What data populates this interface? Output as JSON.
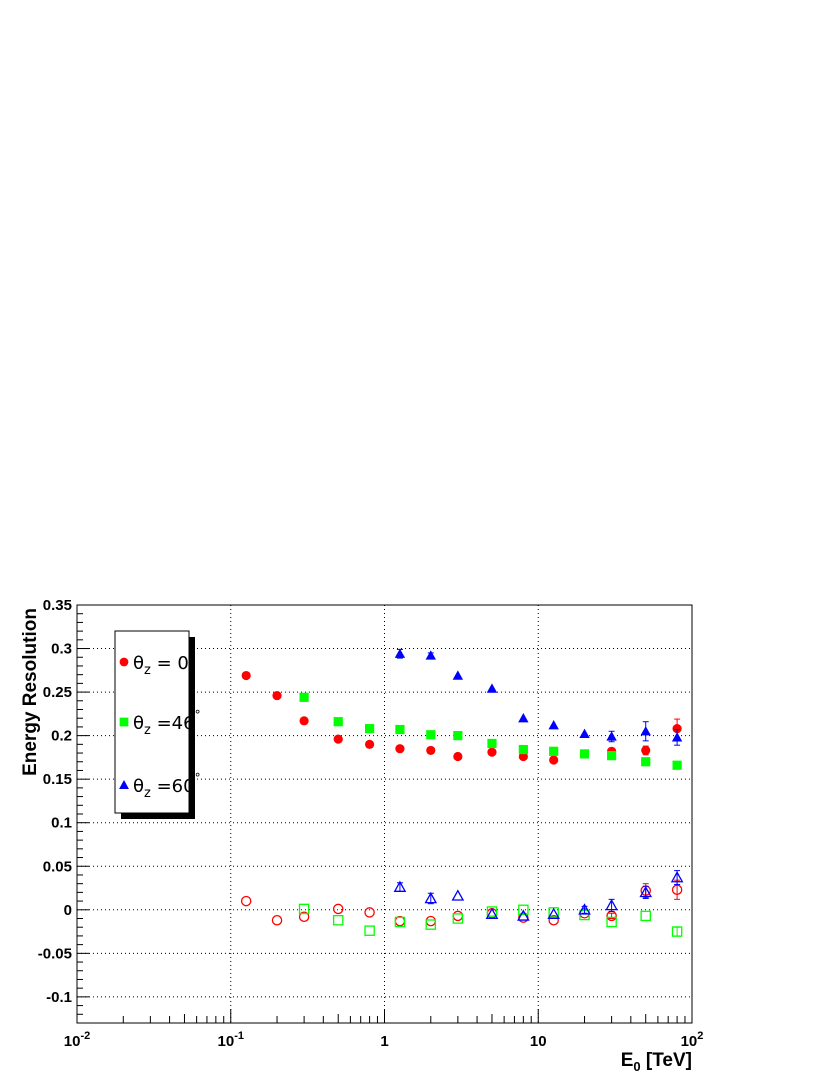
{
  "chart_data": {
    "type": "scatter",
    "title": "",
    "xlabel": "E",
    "xlabel_sub": "0",
    "xlabel_unit": " [TeV]",
    "ylabel": "Energy Resolution",
    "x_scale": "log",
    "xlim": [
      0.01,
      100
    ],
    "ylim": [
      -0.13,
      0.35
    ],
    "grid": true,
    "x_ticks": [
      {
        "value": 0.01,
        "base": "10",
        "exp": "-2"
      },
      {
        "value": 0.1,
        "base": "10",
        "exp": "-1"
      },
      {
        "value": 1,
        "base": "1",
        "exp": ""
      },
      {
        "value": 10,
        "base": "10",
        "exp": ""
      },
      {
        "value": 100,
        "base": "10",
        "exp": "2"
      }
    ],
    "y_ticks": [
      {
        "value": 0.35,
        "label": "0.35"
      },
      {
        "value": 0.3,
        "label": "0.3"
      },
      {
        "value": 0.25,
        "label": "0.25"
      },
      {
        "value": 0.2,
        "label": "0.2"
      },
      {
        "value": 0.15,
        "label": "0.15"
      },
      {
        "value": 0.1,
        "label": "0.1"
      },
      {
        "value": 0.05,
        "label": "0.05"
      },
      {
        "value": 0,
        "label": "0"
      },
      {
        "value": -0.05,
        "label": "-0.05"
      },
      {
        "value": -0.1,
        "label": "-0.1"
      }
    ],
    "legend": {
      "placement": "top-left",
      "entries": [
        {
          "label_prefix": "θ",
          "label_sub": "z",
          "label_main": " = 0",
          "label_sup": "°",
          "color": "#ff0000",
          "marker": "circle"
        },
        {
          "label_prefix": "θ",
          "label_sub": "z",
          "label_main": " =46",
          "label_sup": "°",
          "color": "#00ff00",
          "marker": "square"
        },
        {
          "label_prefix": "θ",
          "label_sub": "z",
          "label_main": " =60",
          "label_sup": "°",
          "color": "#0000ff",
          "marker": "triangle"
        }
      ]
    },
    "series": [
      {
        "color": "#ff0000",
        "marker": "circle",
        "filled": true,
        "x": [
          0.126,
          0.2,
          0.3,
          0.5,
          0.8,
          1.26,
          2.0,
          3.0,
          5.0,
          8.0,
          12.6,
          20,
          30,
          50,
          80
        ],
        "y": [
          0.269,
          0.246,
          0.217,
          0.196,
          0.19,
          0.185,
          0.183,
          0.176,
          0.181,
          0.176,
          0.172,
          0.179,
          0.182,
          0.183,
          0.208
        ],
        "err": [
          0,
          0,
          0,
          0,
          0,
          0,
          0,
          0,
          0,
          0,
          0,
          0,
          0.003,
          0.005,
          0.011
        ]
      },
      {
        "color": "#00ff00",
        "marker": "square",
        "filled": true,
        "x": [
          0.3,
          0.5,
          0.8,
          1.26,
          2.0,
          3.0,
          5.0,
          8.0,
          12.6,
          20,
          30,
          50,
          80
        ],
        "y": [
          0.244,
          0.216,
          0.208,
          0.207,
          0.201,
          0.2,
          0.191,
          0.184,
          0.182,
          0.179,
          0.177,
          0.17,
          0.166
        ],
        "err": [
          0,
          0,
          0,
          0,
          0,
          0,
          0,
          0,
          0,
          0,
          0,
          0,
          0.003
        ]
      },
      {
        "color": "#0000ff",
        "marker": "triangle",
        "filled": true,
        "x": [
          1.26,
          2.0,
          3.0,
          5.0,
          8.0,
          12.6,
          20,
          30,
          50,
          80
        ],
        "y": [
          0.294,
          0.292,
          0.269,
          0.254,
          0.22,
          0.212,
          0.202,
          0.199,
          0.205,
          0.198
        ],
        "err": [
          0.005,
          0.003,
          0,
          0,
          0,
          0,
          0,
          0.006,
          0.011,
          0.009
        ]
      },
      {
        "color": "#ff0000",
        "marker": "circle",
        "filled": false,
        "x": [
          0.126,
          0.2,
          0.3,
          0.5,
          0.8,
          1.26,
          2.0,
          3.0,
          5.0,
          8.0,
          12.6,
          20,
          30,
          50,
          80
        ],
        "y": [
          0.01,
          -0.012,
          -0.008,
          0.001,
          -0.003,
          -0.013,
          -0.013,
          -0.007,
          -0.004,
          -0.009,
          -0.012,
          -0.004,
          -0.007,
          0.022,
          0.023
        ],
        "err": [
          0,
          0,
          0,
          0,
          0,
          0,
          0,
          0,
          0,
          0,
          0,
          0,
          0.003,
          0.008,
          0.011
        ]
      },
      {
        "color": "#00ff00",
        "marker": "square",
        "filled": false,
        "x": [
          0.3,
          0.5,
          0.8,
          1.26,
          2.0,
          3.0,
          5.0,
          8.0,
          12.6,
          20,
          30,
          50,
          80
        ],
        "y": [
          0.001,
          -0.012,
          -0.024,
          -0.014,
          -0.017,
          -0.01,
          -0.002,
          0.0,
          -0.003,
          -0.006,
          -0.014,
          -0.007,
          -0.025
        ],
        "err": [
          0,
          0,
          0,
          0,
          0,
          0,
          0,
          0,
          0,
          0,
          0,
          0,
          0.005
        ]
      },
      {
        "color": "#0000ff",
        "marker": "triangle",
        "filled": false,
        "x": [
          1.26,
          2.0,
          3.0,
          5.0,
          8.0,
          12.6,
          20,
          30,
          50,
          80
        ],
        "y": [
          0.026,
          0.013,
          0.016,
          -0.005,
          -0.007,
          -0.005,
          0.0,
          0.005,
          0.02,
          0.037
        ],
        "err": [
          0.005,
          0.006,
          0,
          0,
          0,
          0,
          0.004,
          0.007,
          0.007,
          0.008
        ]
      }
    ]
  }
}
